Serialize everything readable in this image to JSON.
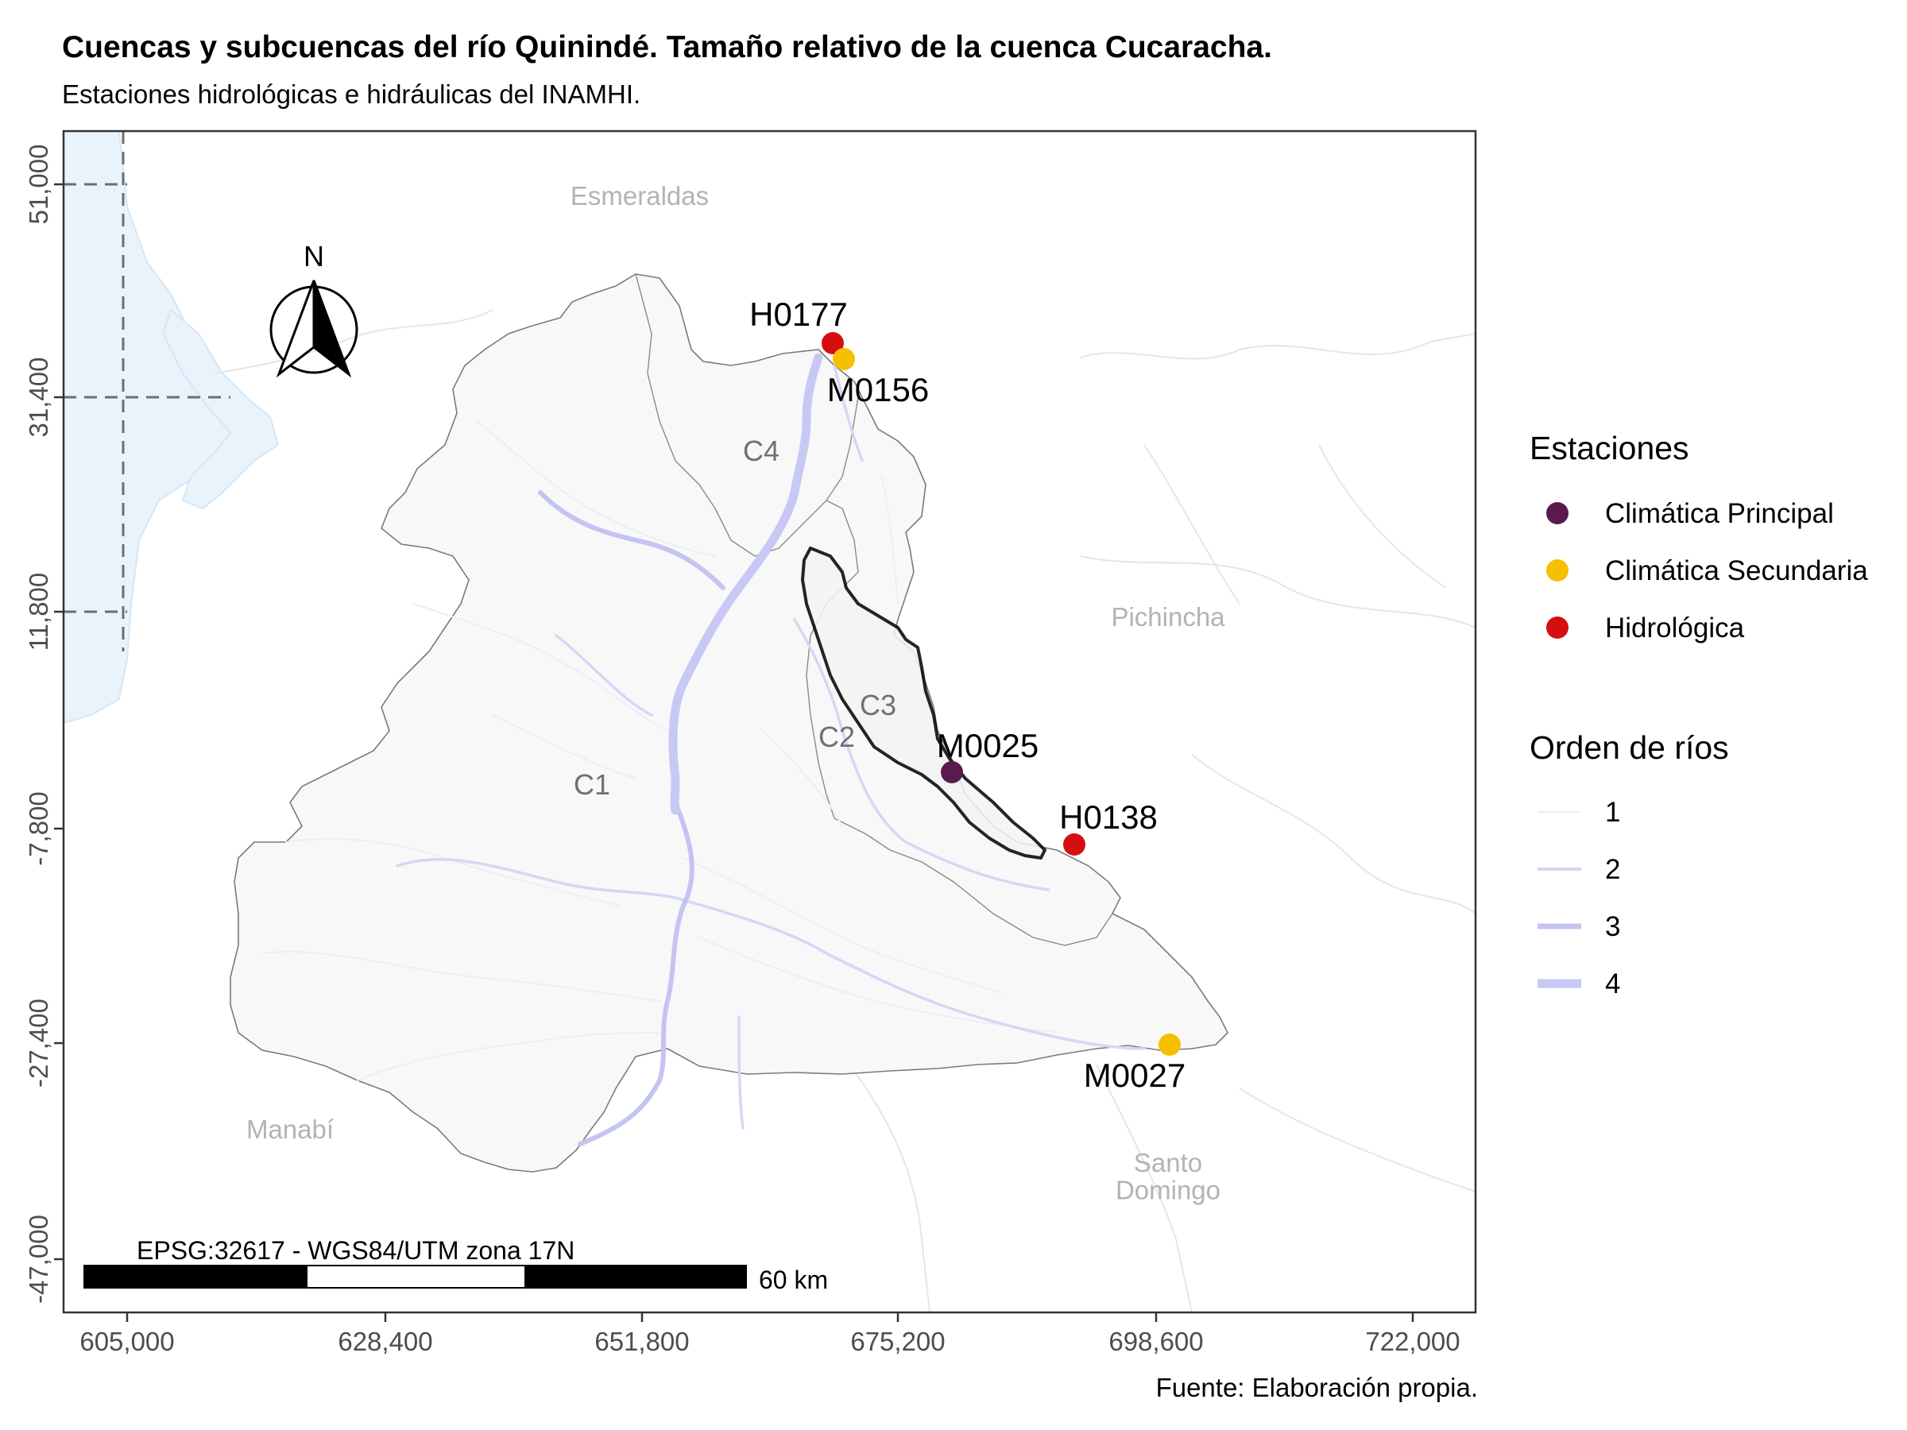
{
  "title": "Cuencas y subcuencas del río Quinindé. Tamaño relativo de la cuenca Cucaracha.",
  "subtitle": "Estaciones hidrológicas e hidráulicas del INAMHI.",
  "caption": "Fuente: Elaboración propia.",
  "crs_label": "EPSG:32617 - WGS84/UTM zona 17N",
  "scale_label": "60 km",
  "north_label": "N",
  "axes": {
    "x_ticks": [
      "605,000",
      "628,400",
      "651,800",
      "675,200",
      "698,600",
      "722,000"
    ],
    "y_ticks": [
      "51,000",
      "31,400",
      "11,800",
      "-7,800",
      "-27,400",
      "-47,000"
    ]
  },
  "provinces": [
    {
      "name": "Esmeraldas",
      "lines": [
        "Esmeraldas"
      ]
    },
    {
      "name": "Pichincha",
      "lines": [
        "Pichincha"
      ]
    },
    {
      "name": "Manabí",
      "lines": [
        "Manabí"
      ]
    },
    {
      "name": "Santo Domingo",
      "lines": [
        "Santo",
        "Domingo"
      ]
    }
  ],
  "subbasins": [
    "C1",
    "C2",
    "C3",
    "C4"
  ],
  "stations": [
    {
      "code": "H0177",
      "type": "Hidrológica"
    },
    {
      "code": "M0156",
      "type": "Climática Secundaria"
    },
    {
      "code": "M0025",
      "type": "Climática Principal"
    },
    {
      "code": "H0138",
      "type": "Hidrológica"
    },
    {
      "code": "M0027",
      "type": "Climática Secundaria"
    }
  ],
  "legend": {
    "stations_title": "Estaciones",
    "stations": [
      {
        "label": "Climática Principal",
        "color": "#5b1a4e"
      },
      {
        "label": "Climática Secundaria",
        "color": "#f5c000"
      },
      {
        "label": "Hidrológica",
        "color": "#d40f10"
      }
    ],
    "rivers_title": "Orden de ríos",
    "rivers": [
      "1",
      "2",
      "3",
      "4"
    ]
  },
  "colors": {
    "sea": "#e9f3fc",
    "basin_fill": "#f8f8f8",
    "river": "#c8c8f5",
    "cucaracha_outline": "#000000"
  }
}
